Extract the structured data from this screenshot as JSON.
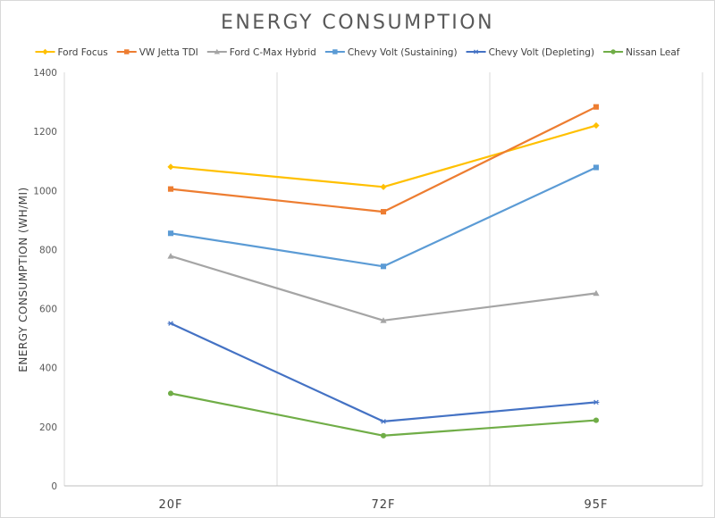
{
  "chart_data": {
    "type": "line",
    "title": "ENERGY CONSUMPTION",
    "ylabel": "ENERGY CONSUMPTION (WH/MI)",
    "xlabel": "",
    "categories": [
      "20F",
      "72F",
      "95F"
    ],
    "ylim": [
      0,
      1400
    ],
    "yticks": [
      0,
      200,
      400,
      600,
      800,
      1000,
      1200,
      1400
    ],
    "legend_position": "top",
    "grid": "vertical category lines",
    "series": [
      {
        "name": "Ford Focus",
        "values": [
          1080,
          1012,
          1220
        ],
        "color": "#FFC000",
        "marker": "diamond"
      },
      {
        "name": "VW Jetta TDI",
        "values": [
          1005,
          928,
          1283
        ],
        "color": "#ED7D31",
        "marker": "square"
      },
      {
        "name": "Ford C-Max Hybrid",
        "values": [
          778,
          560,
          652
        ],
        "color": "#A5A5A5",
        "marker": "triangle"
      },
      {
        "name": "Chevy Volt (Sustaining)",
        "values": [
          855,
          743,
          1078
        ],
        "color": "#5B9BD5",
        "marker": "square"
      },
      {
        "name": "Chevy Volt (Depleting)",
        "values": [
          550,
          218,
          283
        ],
        "color": "#4472C4",
        "marker": "star"
      },
      {
        "name": "Nissan Leaf",
        "values": [
          313,
          170,
          222
        ],
        "color": "#70AD47",
        "marker": "circle"
      }
    ]
  }
}
